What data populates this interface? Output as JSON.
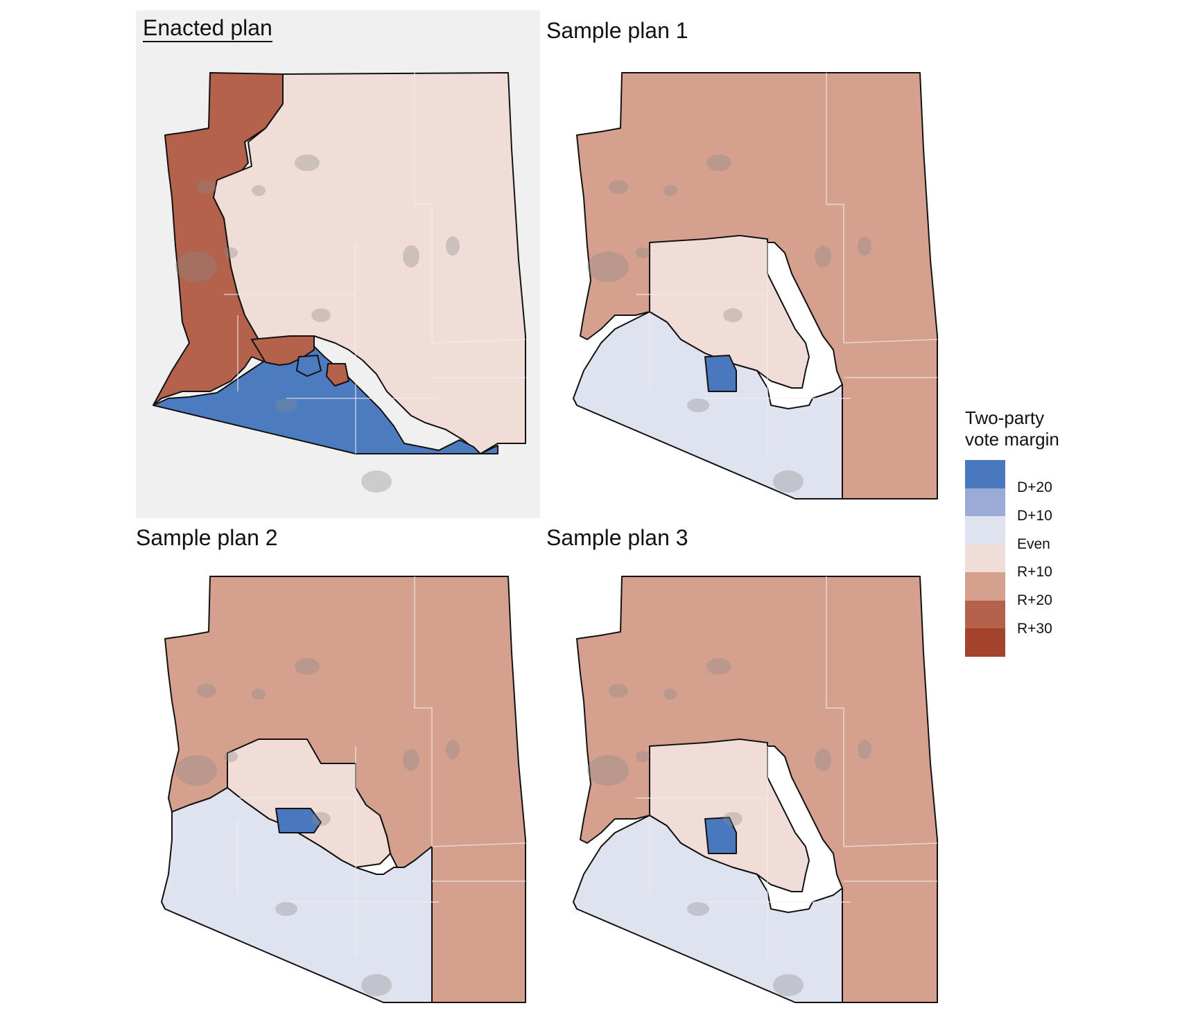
{
  "panels": [
    {
      "title": "Enacted plan",
      "highlighted": true,
      "fills": [
        "#b4624c",
        "#f1ddd8",
        "#4d7bbf"
      ]
    },
    {
      "title": "Sample plan 1",
      "highlighted": false,
      "fills": [
        "#d6a08f",
        "#f1ddd8",
        "#dfe3ef"
      ]
    },
    {
      "title": "Sample plan 2",
      "highlighted": false,
      "fills": [
        "#d6a08f",
        "#f1ddd8",
        "#dfe3ef"
      ]
    },
    {
      "title": "Sample plan 3",
      "highlighted": false,
      "fills": [
        "#d6a08f",
        "#f1ddd8",
        "#dfe3ef"
      ]
    }
  ],
  "legend": {
    "title": "Two-party vote margin",
    "title_line1": "Two-party",
    "title_line2": "vote margin",
    "scale_colors": [
      "#4a78be",
      "#9aabd8",
      "#dfe3ef",
      "#f1ddd8",
      "#d6a08f",
      "#b4624c",
      "#a2432c"
    ],
    "labels": [
      "D+20",
      "D+10",
      "Even",
      "R+10",
      "R+20",
      "R+30"
    ]
  },
  "colors": {
    "panel_highlight": "#f0f0f0",
    "district_border": "#111111",
    "county_lines": "#eeeeee",
    "urban_overlay": "#8a8a8a"
  }
}
